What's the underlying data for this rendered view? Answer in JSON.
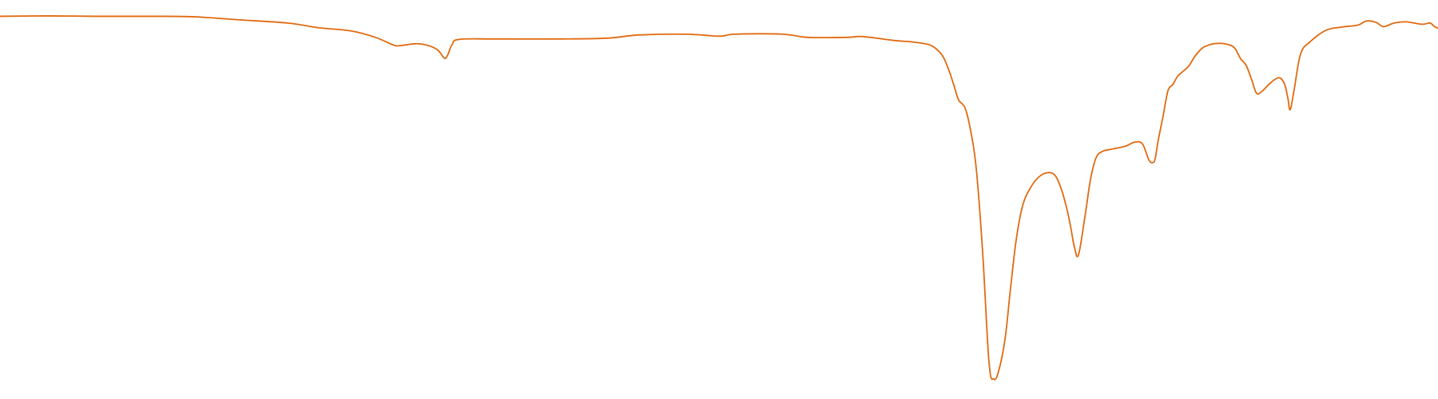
{
  "colors": {
    "line": "#e06a10",
    "background": "#ffffff"
  },
  "chart_data": {
    "type": "line",
    "title": "",
    "xlabel": "",
    "ylabel": "",
    "axes_visible": false,
    "grid": false,
    "legend": "none",
    "xlim": [
      0,
      1800
    ],
    "ylim": [
      0,
      100
    ],
    "series": [
      {
        "color": "#e06a10",
        "points": [
          [
            0,
            96.3
          ],
          [
            60,
            96.4
          ],
          [
            120,
            96.3
          ],
          [
            180,
            96.3
          ],
          [
            240,
            96.2
          ],
          [
            300,
            95.4
          ],
          [
            360,
            94.6
          ],
          [
            400,
            93.4
          ],
          [
            440,
            92.6
          ],
          [
            470,
            91.0
          ],
          [
            492,
            89.1
          ],
          [
            500,
            88.9
          ],
          [
            520,
            89.4
          ],
          [
            535,
            89.0
          ],
          [
            548,
            87.8
          ],
          [
            556,
            85.8
          ],
          [
            560,
            86.4
          ],
          [
            566,
            89.2
          ],
          [
            575,
            90.5
          ],
          [
            620,
            90.6
          ],
          [
            700,
            90.6
          ],
          [
            760,
            90.8
          ],
          [
            800,
            91.6
          ],
          [
            860,
            91.8
          ],
          [
            900,
            91.3
          ],
          [
            920,
            91.8
          ],
          [
            980,
            91.8
          ],
          [
            1010,
            91.0
          ],
          [
            1060,
            91.0
          ],
          [
            1080,
            91.2
          ],
          [
            1120,
            90.2
          ],
          [
            1140,
            89.9
          ],
          [
            1160,
            89.3
          ],
          [
            1170,
            88.4
          ],
          [
            1180,
            86.3
          ],
          [
            1188,
            82.6
          ],
          [
            1195,
            78.3
          ],
          [
            1200,
            75.2
          ],
          [
            1208,
            73.2
          ],
          [
            1215,
            67.5
          ],
          [
            1222,
            58.0
          ],
          [
            1230,
            37.0
          ],
          [
            1238,
            9.2
          ],
          [
            1244,
            5.0
          ],
          [
            1250,
            7.0
          ],
          [
            1258,
            15.0
          ],
          [
            1265,
            28.0
          ],
          [
            1272,
            40.0
          ],
          [
            1280,
            48.6
          ],
          [
            1290,
            53.2
          ],
          [
            1300,
            55.8
          ],
          [
            1310,
            56.9
          ],
          [
            1320,
            56.4
          ],
          [
            1328,
            53.1
          ],
          [
            1335,
            48.2
          ],
          [
            1340,
            43.5
          ],
          [
            1345,
            38.1
          ],
          [
            1350,
            36.3
          ],
          [
            1358,
            45.8
          ],
          [
            1365,
            55.2
          ],
          [
            1372,
            60.7
          ],
          [
            1380,
            62.3
          ],
          [
            1390,
            62.8
          ],
          [
            1400,
            63.2
          ],
          [
            1410,
            63.7
          ],
          [
            1420,
            64.6
          ],
          [
            1430,
            64.2
          ],
          [
            1438,
            60.2
          ],
          [
            1443,
            59.5
          ],
          [
            1446,
            60.5
          ],
          [
            1450,
            65.3
          ],
          [
            1456,
            71.3
          ],
          [
            1462,
            77.6
          ],
          [
            1468,
            79.1
          ],
          [
            1474,
            81.2
          ],
          [
            1480,
            82.3
          ],
          [
            1488,
            83.8
          ],
          [
            1496,
            86.3
          ],
          [
            1505,
            88.3
          ],
          [
            1515,
            89.2
          ],
          [
            1525,
            89.5
          ],
          [
            1535,
            89.3
          ],
          [
            1545,
            88.4
          ],
          [
            1553,
            85.6
          ],
          [
            1560,
            83.9
          ],
          [
            1567,
            80.2
          ],
          [
            1573,
            76.9
          ],
          [
            1580,
            77.5
          ],
          [
            1588,
            79.1
          ],
          [
            1595,
            80.3
          ],
          [
            1602,
            80.8
          ],
          [
            1608,
            79.2
          ],
          [
            1612,
            75.8
          ],
          [
            1615,
            72.8
          ],
          [
            1620,
            77.9
          ],
          [
            1628,
            86.8
          ],
          [
            1640,
            89.9
          ],
          [
            1660,
            92.8
          ],
          [
            1680,
            93.6
          ],
          [
            1700,
            94.1
          ],
          [
            1710,
            95.1
          ],
          [
            1722,
            94.8
          ],
          [
            1732,
            93.7
          ],
          [
            1745,
            94.6
          ],
          [
            1760,
            94.9
          ],
          [
            1780,
            94.3
          ],
          [
            1790,
            94.6
          ],
          [
            1795,
            93.8
          ],
          [
            1800,
            93.3
          ]
        ]
      }
    ]
  }
}
